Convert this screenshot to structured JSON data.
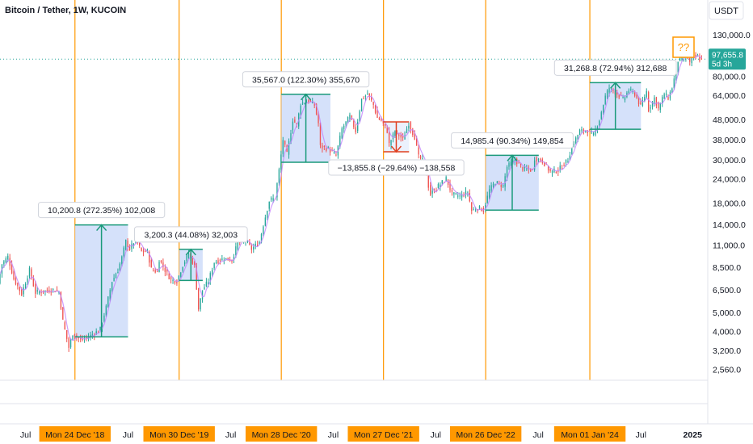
{
  "header": {
    "symbol_title": "Bitcoin / Tether, 1W, KUCOIN",
    "currency_button": "USDT"
  },
  "price_tag": {
    "value": "97,655.8",
    "countdown": "5d 3h"
  },
  "question_box": "??",
  "colors": {
    "orange": "#ff9800",
    "up": "#26a69a",
    "down": "#ef5350",
    "ma": "#c084fc",
    "box_fill": "#c7d7f8",
    "measure_green": "#1a9a7a",
    "measure_red": "#e04020",
    "price_tag": "#26a69a"
  },
  "chart_data": {
    "type": "candlestick",
    "title": "Bitcoin / Tether, 1W, KUCOIN",
    "y_scale": "log",
    "ylim": [
      2250,
      150000
    ],
    "xlim": [
      "2018-04-01",
      "2025-02-24"
    ],
    "y_ticks": [
      {
        "value": 130000,
        "label": "130,000.0"
      },
      {
        "value": 80000,
        "label": "80,000.0"
      },
      {
        "value": 64000,
        "label": "64,000.0"
      },
      {
        "value": 48000,
        "label": "48,000.0"
      },
      {
        "value": 38000,
        "label": "38,000.0"
      },
      {
        "value": 30000,
        "label": "30,000.0"
      },
      {
        "value": 24000,
        "label": "24,000.0"
      },
      {
        "value": 18000,
        "label": "18,000.0"
      },
      {
        "value": 14000,
        "label": "14,000.0"
      },
      {
        "value": 11000,
        "label": "11,000.0"
      },
      {
        "value": 8500,
        "label": "8,500.0"
      },
      {
        "value": 6500,
        "label": "6,500.0"
      },
      {
        "value": 5000,
        "label": "5,000.0"
      },
      {
        "value": 4000,
        "label": "4,000.0"
      },
      {
        "value": 3200,
        "label": "3,200.0"
      },
      {
        "value": 2560,
        "label": "2,560.0"
      }
    ],
    "x_ticks": [
      {
        "date": "2018-07-01",
        "label": "Jul",
        "highlight": false
      },
      {
        "date": "2018-12-24",
        "label": "Mon 24 Dec '18",
        "highlight": true
      },
      {
        "date": "2019-07-01",
        "label": "Jul",
        "highlight": false
      },
      {
        "date": "2019-12-30",
        "label": "Mon 30 Dec '19",
        "highlight": true
      },
      {
        "date": "2020-07-01",
        "label": "Jul",
        "highlight": false
      },
      {
        "date": "2020-12-28",
        "label": "Mon 28 Dec '20",
        "highlight": true
      },
      {
        "date": "2021-07-01",
        "label": "Jul",
        "highlight": false
      },
      {
        "date": "2021-12-27",
        "label": "Mon 27 Dec '21",
        "highlight": true
      },
      {
        "date": "2022-07-01",
        "label": "Jul",
        "highlight": false
      },
      {
        "date": "2022-12-26",
        "label": "Mon 26 Dec '22",
        "highlight": true
      },
      {
        "date": "2023-07-01",
        "label": "Jul",
        "highlight": false
      },
      {
        "date": "2024-01-01",
        "label": "Mon 01 Jan '24",
        "highlight": true
      },
      {
        "date": "2024-07-01",
        "label": "Jul",
        "highlight": false
      },
      {
        "date": "2025-01-01",
        "label": "2025",
        "highlight": false
      }
    ],
    "vertical_markers": [
      "2018-12-24",
      "2019-12-30",
      "2020-12-28",
      "2021-12-27",
      "2022-12-26",
      "2024-01-01"
    ],
    "current_price": 97655.8,
    "price_path": [
      [
        "2018-04-01",
        7000
      ],
      [
        "2018-04-15",
        8800
      ],
      [
        "2018-05-06",
        9600
      ],
      [
        "2018-05-27",
        7400
      ],
      [
        "2018-06-24",
        6200
      ],
      [
        "2018-07-22",
        8200
      ],
      [
        "2018-08-12",
        6300
      ],
      [
        "2018-09-09",
        6400
      ],
      [
        "2018-10-14",
        6500
      ],
      [
        "2018-11-04",
        6350
      ],
      [
        "2018-11-18",
        4500
      ],
      [
        "2018-12-09",
        3300
      ],
      [
        "2018-12-23",
        3900
      ],
      [
        "2019-01-20",
        3600
      ],
      [
        "2019-02-10",
        3700
      ],
      [
        "2019-03-10",
        3900
      ],
      [
        "2019-03-31",
        4100
      ],
      [
        "2019-04-21",
        5300
      ],
      [
        "2019-05-12",
        7200
      ],
      [
        "2019-06-02",
        8200
      ],
      [
        "2019-06-16",
        9500
      ],
      [
        "2019-06-30",
        11500
      ],
      [
        "2019-07-14",
        10500
      ],
      [
        "2019-08-04",
        11800
      ],
      [
        "2019-08-25",
        10200
      ],
      [
        "2019-09-15",
        10200
      ],
      [
        "2019-09-29",
        8300
      ],
      [
        "2019-10-20",
        8000
      ],
      [
        "2019-10-27",
        9300
      ],
      [
        "2019-11-17",
        8200
      ],
      [
        "2019-12-08",
        7300
      ],
      [
        "2019-12-29",
        7200
      ],
      [
        "2020-01-19",
        8700
      ],
      [
        "2020-02-09",
        10000
      ],
      [
        "2020-03-01",
        8600
      ],
      [
        "2020-03-15",
        5200
      ],
      [
        "2020-03-29",
        6500
      ],
      [
        "2020-04-19",
        7200
      ],
      [
        "2020-05-10",
        9000
      ],
      [
        "2020-06-14",
        9400
      ],
      [
        "2020-07-12",
        9200
      ],
      [
        "2020-08-02",
        11300
      ],
      [
        "2020-08-30",
        11600
      ],
      [
        "2020-09-20",
        10500
      ],
      [
        "2020-10-18",
        11400
      ],
      [
        "2020-10-31",
        13800
      ],
      [
        "2020-11-22",
        18500
      ],
      [
        "2020-12-13",
        19200
      ],
      [
        "2020-12-27",
        26500
      ],
      [
        "2021-01-10",
        38000
      ],
      [
        "2021-01-24",
        32000
      ],
      [
        "2021-02-14",
        48000
      ],
      [
        "2021-02-28",
        45000
      ],
      [
        "2021-03-14",
        58000
      ],
      [
        "2021-04-11",
        60000
      ],
      [
        "2021-05-02",
        57000
      ],
      [
        "2021-05-16",
        46000
      ],
      [
        "2021-05-23",
        35000
      ],
      [
        "2021-06-20",
        34000
      ],
      [
        "2021-07-18",
        31500
      ],
      [
        "2021-08-08",
        43000
      ],
      [
        "2021-09-05",
        50000
      ],
      [
        "2021-09-26",
        42000
      ],
      [
        "2021-10-17",
        61000
      ],
      [
        "2021-11-07",
        65000
      ],
      [
        "2021-11-28",
        57000
      ],
      [
        "2021-12-12",
        49000
      ],
      [
        "2021-12-26",
        47500
      ],
      [
        "2022-01-16",
        42000
      ],
      [
        "2022-01-23",
        36000
      ],
      [
        "2022-02-13",
        42000
      ],
      [
        "2022-03-13",
        38000
      ],
      [
        "2022-04-03",
        46000
      ],
      [
        "2022-04-24",
        39000
      ],
      [
        "2022-05-08",
        31000
      ],
      [
        "2022-05-29",
        29000
      ],
      [
        "2022-06-12",
        22000
      ],
      [
        "2022-06-19",
        20000
      ],
      [
        "2022-07-17",
        22000
      ],
      [
        "2022-08-14",
        24000
      ],
      [
        "2022-09-04",
        20000
      ],
      [
        "2022-10-02",
        19500
      ],
      [
        "2022-10-30",
        20500
      ],
      [
        "2022-11-13",
        16500
      ],
      [
        "2022-12-11",
        17000
      ],
      [
        "2022-12-25",
        16550
      ],
      [
        "2023-01-15",
        21000
      ],
      [
        "2023-02-05",
        23000
      ],
      [
        "2023-03-05",
        22000
      ],
      [
        "2023-03-19",
        27500
      ],
      [
        "2023-04-16",
        30000
      ],
      [
        "2023-05-14",
        27000
      ],
      [
        "2023-06-18",
        26500
      ],
      [
        "2023-06-25",
        30500
      ],
      [
        "2023-07-23",
        29500
      ],
      [
        "2023-08-20",
        26000
      ],
      [
        "2023-09-17",
        26500
      ],
      [
        "2023-10-22",
        30000
      ],
      [
        "2023-11-05",
        35000
      ],
      [
        "2023-12-03",
        42000
      ],
      [
        "2023-12-31",
        42300
      ],
      [
        "2024-01-21",
        40000
      ],
      [
        "2024-02-11",
        48000
      ],
      [
        "2024-03-03",
        63000
      ],
      [
        "2024-03-17",
        70000
      ],
      [
        "2024-04-14",
        65000
      ],
      [
        "2024-05-05",
        61000
      ],
      [
        "2024-05-26",
        68000
      ],
      [
        "2024-06-16",
        65000
      ],
      [
        "2024-07-07",
        56000
      ],
      [
        "2024-07-28",
        67000
      ],
      [
        "2024-08-04",
        54000
      ],
      [
        "2024-08-25",
        62000
      ],
      [
        "2024-09-08",
        54500
      ],
      [
        "2024-09-29",
        65000
      ],
      [
        "2024-10-13",
        62000
      ],
      [
        "2024-10-27",
        70000
      ],
      [
        "2024-11-10",
        85000
      ],
      [
        "2024-11-17",
        96000
      ],
      [
        "2024-12-01",
        97000
      ],
      [
        "2024-12-15",
        104000
      ],
      [
        "2024-12-29",
        93500
      ],
      [
        "2025-01-12",
        102000
      ],
      [
        "2025-01-19",
        100000
      ],
      [
        "2025-01-26",
        101000
      ],
      [
        "2025-02-02",
        97655.8
      ]
    ],
    "measurements": [
      {
        "label": "10,200.8 (272.35%) 102,008",
        "direction": "up",
        "start_date": "2018-12-24",
        "end_date": "2019-07-01",
        "from": 3745,
        "to": 13946
      },
      {
        "label": "3,200.3 (44.08%) 32,003",
        "direction": "up",
        "start_date": "2019-12-30",
        "end_date": "2020-03-23",
        "from": 7260,
        "to": 10460
      },
      {
        "label": "35,567.0 (122.30%) 355,670",
        "direction": "up",
        "start_date": "2020-12-28",
        "end_date": "2021-06-21",
        "from": 29082,
        "to": 64649
      },
      {
        "label": "−13,855.8 (−29.64%) −138,558",
        "direction": "down",
        "start_date": "2021-12-27",
        "end_date": "2022-03-28",
        "from": 46750,
        "to": 32894
      },
      {
        "label": "14,985.4 (90.34%) 149,854",
        "direction": "up",
        "start_date": "2022-12-26",
        "end_date": "2023-07-03",
        "from": 16588,
        "to": 31573
      },
      {
        "label": "31,268.8 (72.94%) 312,688",
        "direction": "up",
        "start_date": "2024-01-01",
        "end_date": "2024-07-01",
        "from": 42870,
        "to": 74139
      }
    ]
  }
}
